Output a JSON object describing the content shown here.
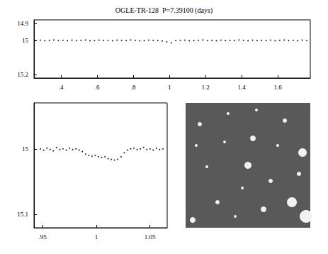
{
  "chart_data": [
    {
      "type": "scatter",
      "title": "OGLE-TR-128  P=7.39100 (days)",
      "color": "#000000",
      "marker": "dot",
      "x": [
        0.26,
        0.285,
        0.31,
        0.335,
        0.36,
        0.385,
        0.41,
        0.435,
        0.46,
        0.485,
        0.51,
        0.535,
        0.56,
        0.585,
        0.61,
        0.635,
        0.66,
        0.685,
        0.71,
        0.735,
        0.76,
        0.785,
        0.81,
        0.835,
        0.86,
        0.885,
        0.91,
        0.935,
        0.96,
        0.985,
        1.01,
        1.035,
        1.06,
        1.085,
        1.11,
        1.135,
        1.16,
        1.185,
        1.21,
        1.235,
        1.26,
        1.285,
        1.31,
        1.335,
        1.36,
        1.385,
        1.41,
        1.435,
        1.46,
        1.485,
        1.51,
        1.535,
        1.56,
        1.585,
        1.61,
        1.635,
        1.66,
        1.685,
        1.71,
        1.735,
        1.76
      ],
      "values": [
        15.001,
        14.999,
        15.002,
        15.0,
        14.998,
        15.001,
        15.0,
        15.002,
        14.999,
        15.001,
        15.0,
        14.998,
        15.002,
        15.001,
        14.999,
        15.0,
        15.001,
        15.002,
        14.999,
        15.0,
        15.001,
        14.998,
        15.0,
        15.002,
        15.001,
        14.999,
        15.0,
        15.001,
        15.003,
        15.009,
        15.014,
        15.001,
        15.0,
        14.999,
        15.002,
        15.001,
        15.0,
        14.998,
        15.001,
        15.0,
        15.002,
        14.999,
        15.001,
        15.0,
        15.001,
        14.998,
        15.0,
        15.002,
        14.999,
        15.001,
        15.0,
        15.001,
        14.999,
        15.002,
        15.0,
        14.998,
        15.001,
        15.0,
        15.002,
        14.999,
        15.001
      ],
      "xlim": [
        0.25,
        1.78
      ],
      "ylim": [
        14.88,
        15.22
      ],
      "xticks": [
        {
          "value": 0.4,
          "label": ".4"
        },
        {
          "value": 0.6,
          "label": ".6"
        },
        {
          "value": 0.8,
          "label": ".8"
        },
        1,
        1.2,
        1.4,
        1.6
      ],
      "yticks": [
        14.9,
        15,
        15.2
      ]
    },
    {
      "type": "scatter",
      "color": "#000000",
      "marker": "dot",
      "x": [
        0.948,
        0.951,
        0.954,
        0.957,
        0.96,
        0.963,
        0.966,
        0.969,
        0.972,
        0.975,
        0.978,
        0.981,
        0.984,
        0.987,
        0.99,
        0.993,
        0.996,
        0.999,
        1.002,
        1.005,
        1.008,
        1.011,
        1.014,
        1.017,
        1.02,
        1.023,
        1.026,
        1.029,
        1.032,
        1.035,
        1.038,
        1.041,
        1.044,
        1.047,
        1.05,
        1.053,
        1.056,
        1.059,
        1.062
      ],
      "values": [
        15.0,
        15.002,
        14.999,
        15.001,
        15.003,
        14.998,
        15.001,
        15.0,
        15.002,
        14.999,
        15.001,
        15.0,
        15.002,
        15.004,
        15.008,
        15.01,
        15.011,
        15.01,
        15.012,
        15.013,
        15.012,
        15.015,
        15.016,
        15.017,
        15.016,
        15.012,
        15.006,
        15.002,
        15.0,
        14.999,
        15.001,
        15.0,
        14.998,
        15.001,
        15.0,
        15.002,
        14.999,
        15.001,
        15.0
      ],
      "xlim": [
        0.942,
        1.066
      ],
      "ylim": [
        14.93,
        15.12
      ],
      "xticks": [
        {
          "value": 0.95,
          "label": ".95"
        },
        1,
        1.05
      ],
      "yticks": [
        15,
        15.1
      ]
    }
  ]
}
